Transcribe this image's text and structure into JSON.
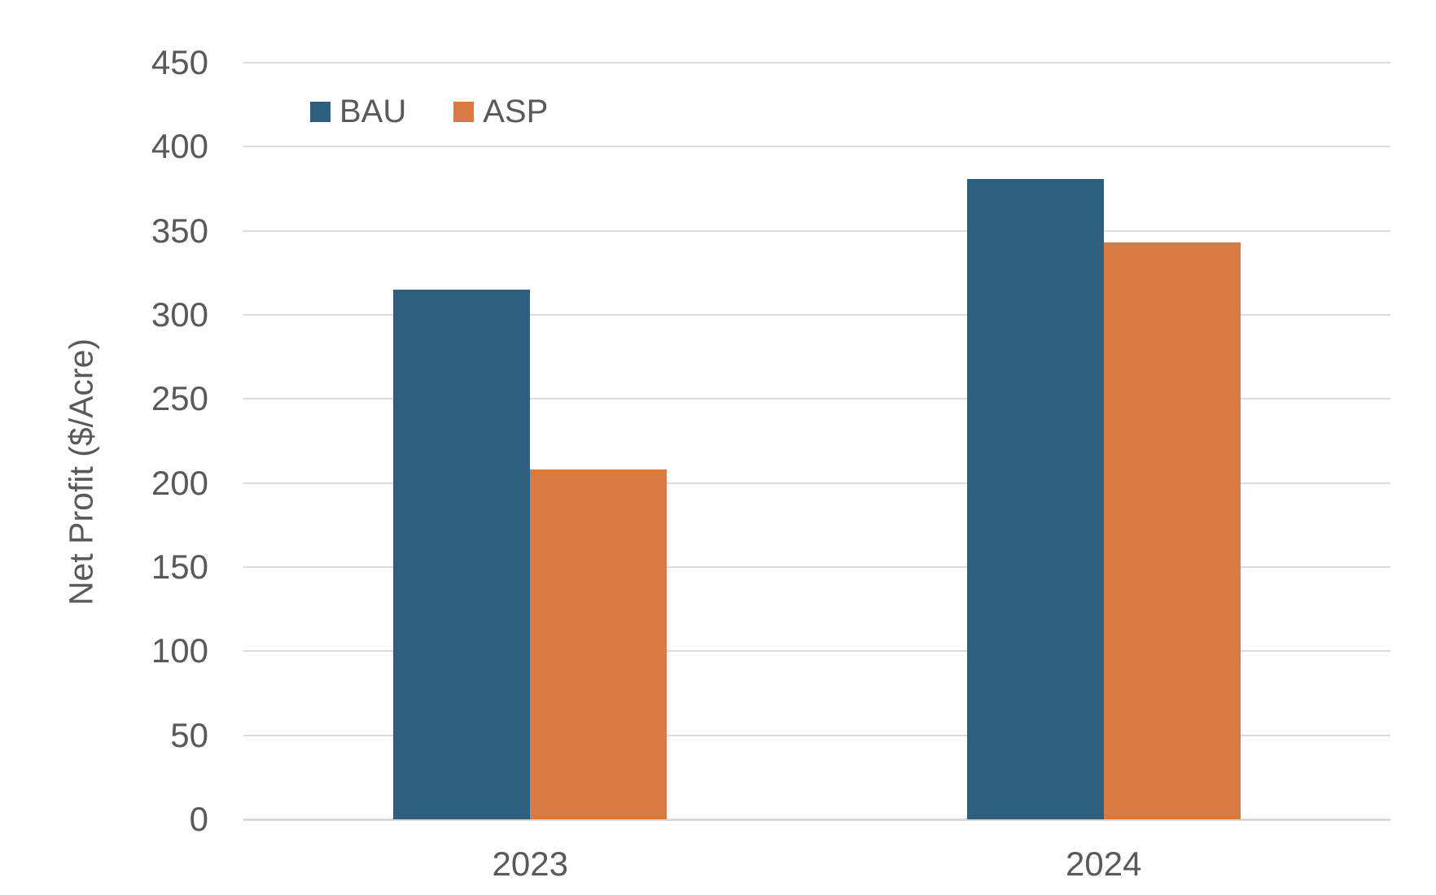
{
  "chart_data": {
    "type": "bar",
    "title": "",
    "xlabel": "",
    "ylabel": "Net Profit ($/Acre)",
    "categories": [
      "2023",
      "2024"
    ],
    "series": [
      {
        "name": "BAU",
        "color": "#2E5F7F",
        "values": [
          315,
          381
        ]
      },
      {
        "name": "ASP",
        "color": "#D77B43",
        "values": [
          208,
          343
        ]
      }
    ],
    "ylim": [
      0,
      450
    ],
    "ytick_step": 50,
    "yticks": [
      0,
      50,
      100,
      150,
      200,
      250,
      300,
      350,
      400,
      450
    ],
    "grid": "horizontal",
    "legend_position": "top-left",
    "legend_labels": [
      "BAU",
      "ASP"
    ]
  },
  "colors": {
    "text": "#595959",
    "gridline": "#DBDBDB",
    "background": "#FFFFFF",
    "bau": "#2E5F7F",
    "asp": "#D77B43"
  }
}
